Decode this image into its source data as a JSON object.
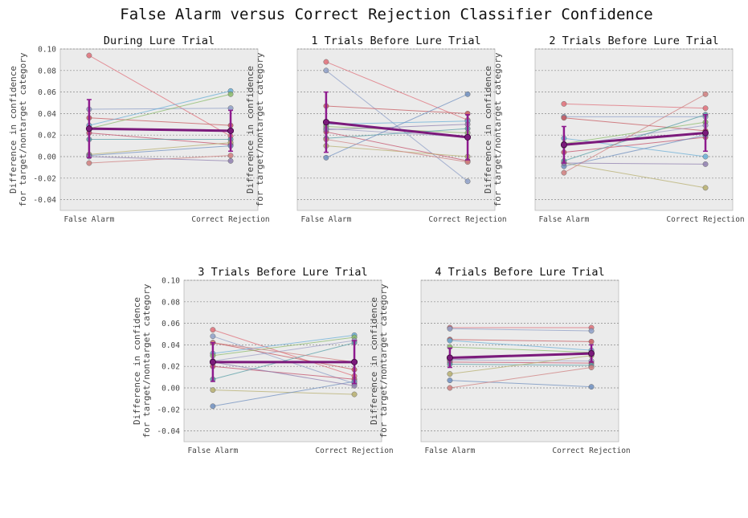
{
  "figure_title": "False Alarm versus Correct Rejection Classifier Confidence",
  "colors": {
    "panel_bg": "#ebebeb",
    "mean_line": "#7b1a7b",
    "error_bar": "#8e1a8e",
    "subject_palette": [
      "#e0707a",
      "#8fa0c8",
      "#c85a60",
      "#6bb0d8",
      "#8bbc6b",
      "#9f9fc6",
      "#c4506a",
      "#5aa0a8",
      "#b8b070",
      "#7090c0",
      "#d08080",
      "#9080b0"
    ]
  },
  "chart_data": [
    {
      "type": "line",
      "title": "During Lure Trial",
      "ylabel": [
        "Difference in confidence",
        "for target/nontarget category"
      ],
      "categories": [
        "False Alarm",
        "Correct Rejection"
      ],
      "ylim": [
        -0.05,
        0.1
      ],
      "yticks": [
        -0.04,
        -0.02,
        0.0,
        0.02,
        0.04,
        0.06,
        0.08,
        0.1
      ],
      "ytick_labels": [
        "-0.04",
        "-0.02",
        "0.00",
        "0.02",
        "0.04",
        "0.06",
        "0.08",
        "0.10"
      ],
      "grid": true,
      "subjects": [
        [
          0.094,
          0.019
        ],
        [
          0.044,
          0.045
        ],
        [
          0.036,
          0.029
        ],
        [
          0.029,
          0.061
        ],
        [
          0.026,
          0.058
        ],
        [
          0.025,
          0.024
        ],
        [
          0.022,
          0.011
        ],
        [
          0.016,
          0.016
        ],
        [
          0.002,
          0.013
        ],
        [
          0.001,
          0.01
        ],
        [
          -0.006,
          0.001
        ],
        [
          0.0,
          -0.004
        ]
      ],
      "mean": [
        0.026,
        0.024
      ],
      "error": [
        0.027,
        0.019
      ]
    },
    {
      "type": "line",
      "title": "1 Trials Before Lure Trial",
      "ylabel": [
        "Difference in confidence",
        "for target/nontarget category"
      ],
      "categories": [
        "False Alarm",
        "Correct Rejection"
      ],
      "ylim": [
        -0.05,
        0.1
      ],
      "yticks": [
        -0.04,
        -0.02,
        0.0,
        0.02,
        0.04,
        0.06,
        0.08,
        0.1
      ],
      "ytick_labels": [
        "",
        "",
        "",
        "",
        "",
        "",
        "",
        ""
      ],
      "grid": true,
      "subjects": [
        [
          0.088,
          0.034
        ],
        [
          0.08,
          -0.023
        ],
        [
          0.047,
          0.04
        ],
        [
          0.03,
          0.033
        ],
        [
          0.028,
          0.022
        ],
        [
          0.026,
          0.018
        ],
        [
          0.023,
          -0.004
        ],
        [
          0.017,
          0.026
        ],
        [
          0.01,
          0.0
        ],
        [
          -0.001,
          0.058
        ],
        [
          0.016,
          -0.005
        ],
        [
          0.025,
          0.03
        ]
      ],
      "mean": [
        0.032,
        0.018
      ],
      "error": [
        0.028,
        0.021
      ]
    },
    {
      "type": "line",
      "title": "2 Trials Before Lure Trial",
      "ylabel": [
        "Difference in confidence",
        "for target/nontarget category"
      ],
      "categories": [
        "False Alarm",
        "Correct Rejection"
      ],
      "ylim": [
        -0.05,
        0.1
      ],
      "yticks": [
        -0.04,
        -0.02,
        0.0,
        0.02,
        0.04,
        0.06,
        0.08,
        0.1
      ],
      "ytick_labels": [
        "",
        "",
        "",
        "",
        "",
        "",
        "",
        ""
      ],
      "grid": true,
      "subjects": [
        [
          0.049,
          0.045
        ],
        [
          0.037,
          0.037
        ],
        [
          0.036,
          0.024
        ],
        [
          0.017,
          0.0
        ],
        [
          0.012,
          0.032
        ],
        [
          0.01,
          0.029
        ],
        [
          0.004,
          0.018
        ],
        [
          -0.004,
          0.039
        ],
        [
          -0.006,
          -0.029
        ],
        [
          -0.009,
          0.02
        ],
        [
          -0.015,
          0.058
        ],
        [
          -0.006,
          -0.007
        ]
      ],
      "mean": [
        0.011,
        0.022
      ],
      "error": [
        0.017,
        0.017
      ]
    },
    {
      "type": "line",
      "title": "3 Trials Before Lure Trial",
      "ylabel": [
        "Difference in confidence",
        "for target/nontarget category"
      ],
      "categories": [
        "False Alarm",
        "Correct Rejection"
      ],
      "ylim": [
        -0.05,
        0.1
      ],
      "yticks": [
        -0.04,
        -0.02,
        0.0,
        0.02,
        0.04,
        0.06,
        0.08,
        0.1
      ],
      "ytick_labels": [
        "-0.04",
        "-0.02",
        "0.00",
        "0.02",
        "0.04",
        "0.06",
        "0.08",
        "0.10"
      ],
      "grid": true,
      "subjects": [
        [
          0.054,
          0.011
        ],
        [
          0.048,
          0.004
        ],
        [
          0.042,
          0.017
        ],
        [
          0.032,
          0.049
        ],
        [
          0.03,
          0.047
        ],
        [
          0.025,
          0.044
        ],
        [
          0.02,
          0.008
        ],
        [
          0.008,
          0.042
        ],
        [
          -0.002,
          -0.006
        ],
        [
          -0.017,
          0.006
        ],
        [
          0.042,
          0.024
        ],
        [
          0.024,
          0.002
        ]
      ],
      "mean": [
        0.024,
        0.024
      ],
      "error": [
        0.018,
        0.02
      ]
    },
    {
      "type": "line",
      "title": "4 Trials Before Lure Trial",
      "ylabel": [
        "Difference in confidence",
        "for target/nontarget category"
      ],
      "categories": [
        "False Alarm",
        "Correct Rejection"
      ],
      "ylim": [
        -0.05,
        0.1
      ],
      "yticks": [
        -0.04,
        -0.02,
        0.0,
        0.02,
        0.04,
        0.06,
        0.08,
        0.1
      ],
      "ytick_labels": [
        "",
        "",
        "",
        "",
        "",
        "",
        "",
        ""
      ],
      "grid": true,
      "subjects": [
        [
          0.056,
          0.056
        ],
        [
          0.055,
          0.053
        ],
        [
          0.045,
          0.043
        ],
        [
          0.044,
          0.035
        ],
        [
          0.038,
          0.033
        ],
        [
          0.026,
          0.025
        ],
        [
          0.024,
          0.023
        ],
        [
          0.022,
          0.021
        ],
        [
          0.013,
          0.03
        ],
        [
          0.007,
          0.001
        ],
        [
          0.0,
          0.019
        ],
        [
          0.026,
          0.033
        ]
      ],
      "mean": [
        0.028,
        0.032
      ],
      "error": [
        0.009,
        0.008
      ]
    }
  ]
}
